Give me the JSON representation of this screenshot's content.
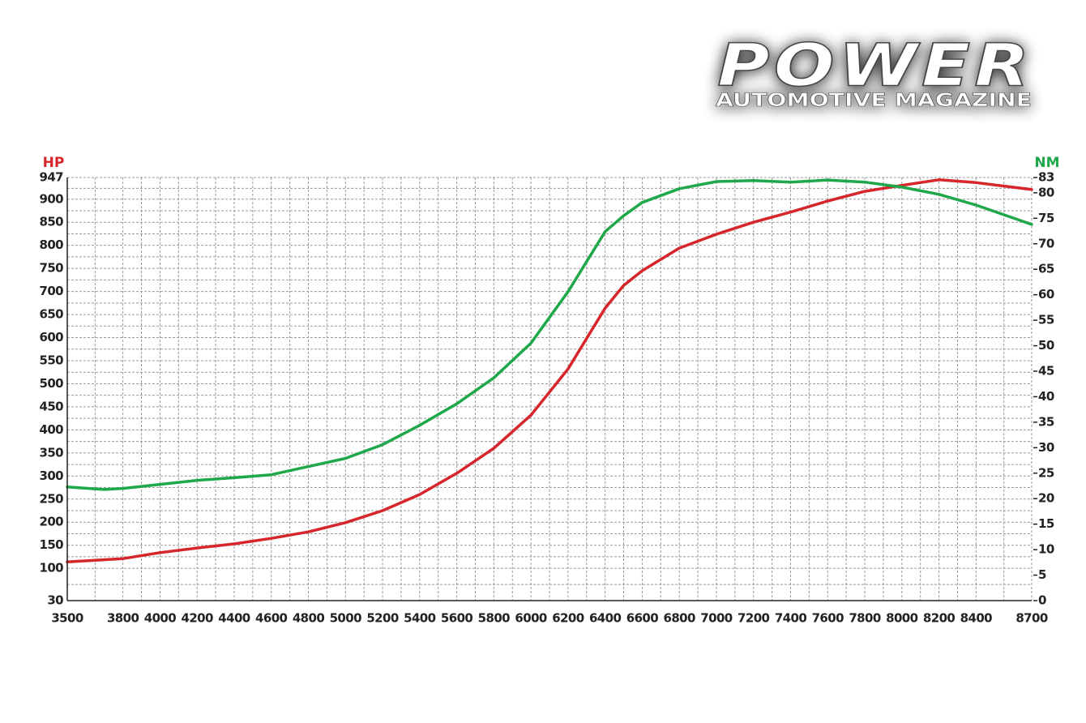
{
  "logo": {
    "title": "POWER",
    "subtitle": "AUTOMOTIVE MAGAZINE"
  },
  "chart_data": {
    "type": "line",
    "y_label": "HP",
    "y2_label": "NM",
    "xlim": [
      3500,
      8700
    ],
    "xticks": [
      3500,
      3800,
      4000,
      4200,
      4400,
      4600,
      4800,
      5000,
      5200,
      5400,
      5600,
      5800,
      6000,
      6200,
      6400,
      6600,
      6800,
      7000,
      7200,
      7400,
      7600,
      7800,
      8000,
      8200,
      8400,
      8700
    ],
    "ylim": [
      30,
      947
    ],
    "yticks": [
      30,
      100,
      150,
      200,
      250,
      300,
      350,
      400,
      450,
      500,
      550,
      600,
      650,
      700,
      750,
      800,
      850,
      900,
      947
    ],
    "y2lim": [
      0,
      83
    ],
    "y2ticks": [
      0,
      5,
      10,
      15,
      20,
      25,
      30,
      35,
      40,
      45,
      50,
      55,
      60,
      65,
      70,
      75,
      80,
      83
    ],
    "grid": true,
    "series": [
      {
        "name": "HP",
        "color": "#d6262b",
        "x": [
          3500,
          3800,
          4000,
          4200,
          4400,
          4600,
          4800,
          5000,
          5200,
          5400,
          5600,
          5800,
          6000,
          6200,
          6400,
          6500,
          6600,
          6800,
          7000,
          7200,
          7400,
          7600,
          7800,
          8000,
          8200,
          8400,
          8700
        ],
        "values": [
          114,
          121,
          134,
          144,
          153,
          165,
          179,
          199,
          225,
          260,
          306,
          360,
          432,
          532,
          664,
          713,
          745,
          794,
          824,
          850,
          872,
          896,
          917,
          930,
          942,
          936,
          921
        ]
      },
      {
        "name": "NM",
        "color": "#1ea84a",
        "axis": "y2",
        "x": [
          3500,
          3700,
          3800,
          4000,
          4200,
          4400,
          4600,
          4800,
          5000,
          5200,
          5400,
          5600,
          5800,
          6000,
          6200,
          6400,
          6500,
          6600,
          6800,
          7000,
          7200,
          7400,
          7600,
          7800,
          8000,
          8200,
          8400,
          8700
        ],
        "values": [
          22.3,
          21.8,
          22,
          22.8,
          23.6,
          24.1,
          24.7,
          26.3,
          27.9,
          30.6,
          34.4,
          38.6,
          43.7,
          50.5,
          60.6,
          72.4,
          75.5,
          78.1,
          80.8,
          82.2,
          82.4,
          82.1,
          82.5,
          82.1,
          81.1,
          79.7,
          77.6,
          73.8
        ]
      }
    ]
  }
}
